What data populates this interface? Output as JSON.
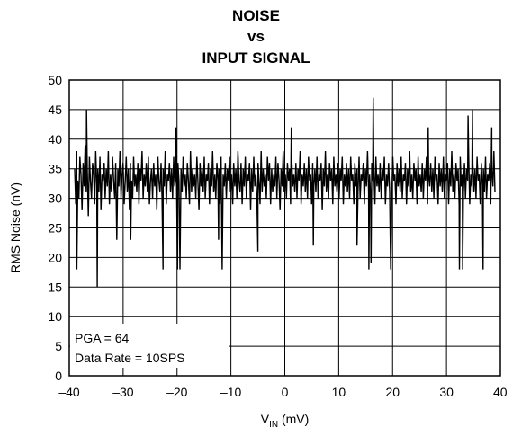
{
  "chart_data": {
    "type": "line",
    "title_lines": [
      "NOISE",
      "vs",
      "INPUT SIGNAL"
    ],
    "xlabel_main": "V",
    "xlabel_sub": "IN",
    "xlabel_unit": " (mV)",
    "ylabel": "RMS Noise (nV)",
    "xlim": [
      -40,
      40
    ],
    "ylim": [
      0,
      50
    ],
    "x_ticks": [
      -40,
      -30,
      -20,
      -10,
      0,
      10,
      20,
      30,
      40
    ],
    "x_tick_labels": [
      "–40",
      "–30",
      "–20",
      "–10",
      "0",
      "10",
      "20",
      "30",
      "40"
    ],
    "y_ticks": [
      0,
      5,
      10,
      15,
      20,
      25,
      30,
      35,
      40,
      45,
      50
    ],
    "y_tick_labels": [
      "0",
      "5",
      "10",
      "15",
      "20",
      "25",
      "30",
      "35",
      "40",
      "45",
      "50"
    ],
    "grid": true,
    "annotations": [
      "PGA = 64",
      "Data Rate = 10SPS"
    ],
    "series": [
      {
        "color": "#000000",
        "x_range": [
          -39,
          39
        ],
        "values": [
          35,
          29,
          38,
          33,
          30,
          37,
          34,
          28,
          36,
          32,
          39,
          31,
          35,
          27,
          37,
          33,
          30,
          36,
          34,
          29,
          38,
          32,
          35,
          31,
          37,
          28,
          34,
          33,
          36,
          30,
          35,
          32,
          38,
          29,
          34,
          31,
          37,
          33,
          30,
          36,
          23,
          35,
          32,
          38,
          30,
          34,
          36,
          29,
          33,
          37,
          31,
          35,
          28,
          36,
          33,
          30,
          37,
          32,
          34,
          31,
          36,
          29,
          35,
          33,
          38,
          30,
          34,
          32,
          36,
          31,
          37,
          29,
          33,
          35,
          30,
          36,
          32,
          34,
          28,
          37,
          33,
          31,
          36,
          30,
          35,
          32,
          38,
          29,
          34,
          33,
          36,
          31,
          35,
          30,
          37,
          32,
          34,
          29,
          36,
          33,
          18,
          35,
          31,
          37,
          32,
          34,
          30,
          36,
          33,
          29,
          38,
          31,
          35,
          32,
          34,
          30,
          37,
          33,
          28,
          36,
          32,
          35,
          31,
          37,
          30,
          34,
          33,
          36,
          29,
          35,
          32,
          38,
          31,
          34,
          30,
          36,
          33,
          35,
          29,
          37,
          18,
          34,
          32,
          36,
          30,
          35,
          33,
          37,
          31,
          34,
          29,
          36,
          32,
          35,
          30,
          38,
          33,
          31,
          36,
          29,
          35,
          32,
          37,
          30,
          34,
          33,
          36,
          28,
          35,
          31,
          37,
          32,
          34,
          30,
          36,
          33,
          29,
          38,
          31,
          35,
          32,
          34,
          30,
          37,
          33,
          36,
          29,
          35,
          31,
          34,
          32,
          37,
          30,
          36,
          33,
          28,
          35,
          32,
          38,
          31,
          34,
          30,
          36,
          33,
          35,
          29,
          37,
          32,
          34,
          31,
          36,
          30,
          35,
          33,
          38,
          29,
          34,
          32,
          36,
          31,
          35,
          30,
          37,
          33,
          34,
          29,
          36,
          32,
          35,
          31,
          37,
          30,
          34,
          33,
          36,
          28,
          35,
          32,
          38,
          31,
          34,
          30,
          36,
          33,
          35,
          29,
          37,
          32,
          34,
          31,
          36,
          30,
          35,
          33,
          37,
          29,
          34,
          32,
          36,
          31,
          35,
          30,
          37,
          33,
          34,
          29,
          36,
          32,
          35,
          31,
          37,
          30,
          34,
          33,
          36,
          29,
          35,
          32,
          38,
          31,
          34,
          30,
          36,
          33,
          35,
          29,
          37,
          32,
          34,
          31,
          36,
          30,
          35,
          33,
          37,
          29,
          34,
          32,
          36,
          31,
          18,
          30,
          37,
          33,
          34,
          29,
          36,
          32,
          35,
          31,
          37,
          30,
          34,
          33,
          36,
          29,
          35,
          32,
          38,
          31,
          34,
          30,
          36,
          33,
          35,
          29,
          37,
          32,
          34,
          31,
          36,
          30,
          35,
          33,
          37,
          29,
          34,
          32,
          36,
          31,
          35,
          30,
          37,
          33,
          34,
          29,
          36,
          32,
          35,
          31,
          37,
          30,
          34,
          33,
          36,
          29,
          35,
          32,
          38,
          31,
          34,
          30,
          36,
          33,
          35,
          29,
          37,
          32,
          34,
          31,
          36,
          30,
          35,
          33,
          37,
          29,
          34,
          32,
          36,
          31,
          35,
          30,
          37,
          33,
          34,
          29,
          36,
          32,
          35,
          31,
          37,
          30,
          34,
          33,
          36,
          29,
          35,
          32,
          38,
          31
        ]
      }
    ],
    "peaks": [
      {
        "x": -36.8,
        "y": 45
      },
      {
        "x": -34.8,
        "y": 15
      },
      {
        "x": -38.6,
        "y": 18
      },
      {
        "x": -22.6,
        "y": 18
      },
      {
        "x": -19.9,
        "y": 18
      },
      {
        "x": -20.2,
        "y": 42
      },
      {
        "x": 16.4,
        "y": 47
      },
      {
        "x": 15.6,
        "y": 18
      },
      {
        "x": 16.0,
        "y": 19
      },
      {
        "x": 32.4,
        "y": 18
      },
      {
        "x": 33.0,
        "y": 18
      },
      {
        "x": 34.0,
        "y": 44
      },
      {
        "x": 34.8,
        "y": 45
      },
      {
        "x": 36.8,
        "y": 18
      },
      {
        "x": -12.3,
        "y": 23
      },
      {
        "x": -5.0,
        "y": 21
      },
      {
        "x": 5.3,
        "y": 22
      },
      {
        "x": 13.4,
        "y": 22
      },
      {
        "x": 26.6,
        "y": 42
      },
      {
        "x": 38.4,
        "y": 42
      },
      {
        "x": -28.6,
        "y": 23
      },
      {
        "x": 1.2,
        "y": 42
      }
    ]
  }
}
